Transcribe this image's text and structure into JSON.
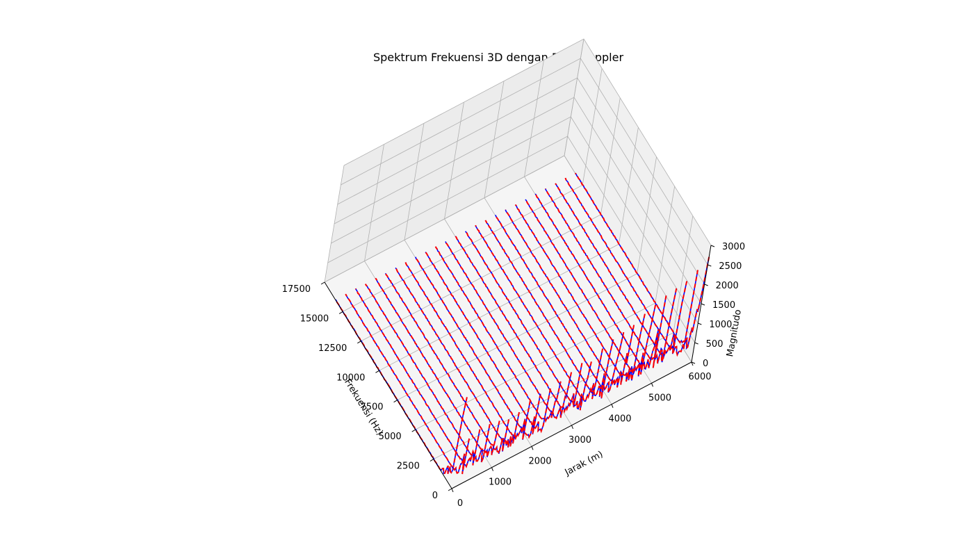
{
  "chart_data": {
    "type": "line",
    "projection": "3d",
    "title": "Spektrum Frekuensi 3D dengan Efek Doppler",
    "xlabel": "Frekuensi (Hz)",
    "ylabel": "Jarak (m)",
    "zlabel": "Magnitudo",
    "xlim": [
      0,
      17500
    ],
    "ylim": [
      0,
      6000
    ],
    "zlim": [
      0,
      3000
    ],
    "x_ticks": [
      "0",
      "2500",
      "5000",
      "7500",
      "10000",
      "12500",
      "15000",
      "17500"
    ],
    "y_ticks": [
      "0",
      "1000",
      "2000",
      "3000",
      "4000",
      "5000",
      "6000"
    ],
    "z_ticks": [
      "0",
      "500",
      "1000",
      "1500",
      "2000",
      "2500",
      "3000"
    ],
    "grid": true,
    "series": [
      {
        "style": "solid",
        "color": "#0000ff"
      },
      {
        "style": "dashed",
        "color": "#ff0000"
      }
    ],
    "distances": [
      0,
      250,
      500,
      750,
      1000,
      1250,
      1500,
      1750,
      2000,
      2250,
      2500,
      2750,
      3000,
      3250,
      3500,
      3750,
      4000,
      4250,
      4500,
      4750,
      5000,
      5250,
      5500,
      5750,
      6000
    ],
    "peak_magnitudes": [
      2350,
      1150,
      1250,
      1250,
      1200,
      1100,
      1150,
      1300,
      1350,
      1350,
      1400,
      1500,
      1600,
      1500,
      1700,
      1800,
      1850,
      1900,
      2050,
      2150,
      2250,
      2300,
      2350,
      2500,
      2700
    ],
    "spectrum_extent_hz": [
      0,
      16000
    ]
  }
}
